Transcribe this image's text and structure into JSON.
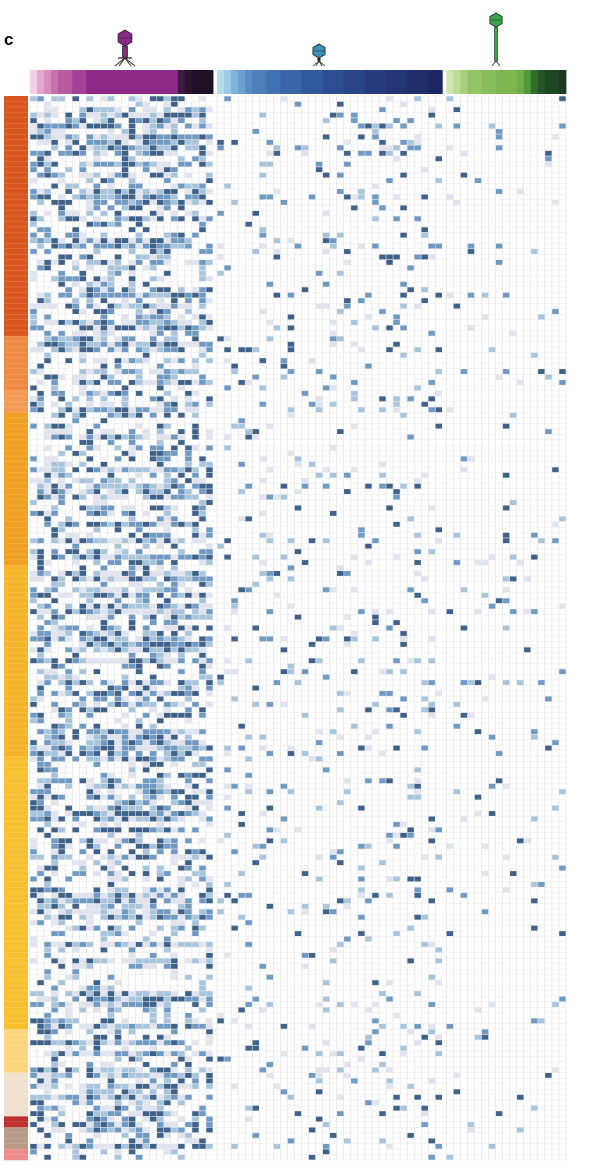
{
  "panel_label": "c",
  "chart_data": {
    "type": "heatmap",
    "title": "",
    "xlabel": "",
    "ylabel": "",
    "grid": true,
    "legend": "none",
    "column_groups": [
      {
        "phage_icon": "myovirus-phage-icon",
        "icon_color": "#8b2a85",
        "column_colors": [
          "#f2d0e4",
          "#e3a9cc",
          "#d98dbe",
          "#c672ad",
          "#b85aa0",
          "#b85aa0",
          "#a44095",
          "#a44095",
          "#8e2a88",
          "#8e2a88",
          "#8e2a88",
          "#8e2a88",
          "#8e2a88",
          "#8e2a88",
          "#8e2a88",
          "#8e2a88",
          "#8e2a88",
          "#8e2a88",
          "#8e2a88",
          "#8e2a88",
          "#8e2a88",
          "#3e1a3c",
          "#2a1430",
          "#1f1028",
          "#1f1028",
          "#1f1028"
        ]
      },
      {
        "phage_icon": "podovirus-phage-icon",
        "icon_color": "#3f8fb8",
        "column_colors": [
          "#b9dcea",
          "#9ccbe2",
          "#7bb4d8",
          "#6aa2cf",
          "#5b8dc4",
          "#4e7fbb",
          "#4e7fbb",
          "#4272b2",
          "#4272b2",
          "#3a66a8",
          "#3a66a8",
          "#3a66a8",
          "#33599d",
          "#33599d",
          "#33599d",
          "#2e4e92",
          "#2e4e92",
          "#2e4e92",
          "#2a4488",
          "#2a4488",
          "#2a4488",
          "#263c7d",
          "#263c7d",
          "#263c7d",
          "#233574",
          "#233574",
          "#233574",
          "#202e6b",
          "#202e6b",
          "#202e6b",
          "#1d2862",
          "#1d2862"
        ]
      },
      {
        "phage_icon": "siphovirus-phage-icon",
        "icon_color": "#3aa64a",
        "column_colors": [
          "#cfe6ae",
          "#bddb93",
          "#a8d07a",
          "#93c468",
          "#93c468",
          "#87bd5c",
          "#87bd5c",
          "#7eb752",
          "#7eb752",
          "#7eb752",
          "#72ad48",
          "#4f9a3b",
          "#2f6f2a",
          "#24552a",
          "#1e4524",
          "#1e4524",
          "#1a3a20"
        ]
      }
    ],
    "row_groups": [
      {
        "color": "#d9561f",
        "rows": 44
      },
      {
        "color": "#ef8a43",
        "rows": 10
      },
      {
        "color": "#f39a55",
        "rows": 4
      },
      {
        "color": "#f0a022",
        "rows": 28
      },
      {
        "color": "#f6b42a",
        "rows": 35
      },
      {
        "color": "#f8c030",
        "rows": 50
      },
      {
        "color": "#fcd67e",
        "rows": 8
      },
      {
        "color": "#f0e0cf",
        "rows": 8
      },
      {
        "color": "#c0302c",
        "rows": 2
      },
      {
        "color": "#b89a86",
        "rows": 4
      },
      {
        "color": "#f08c8c",
        "rows": 2
      }
    ],
    "value_scale": {
      "levels": [
        0,
        1,
        2,
        3,
        4
      ],
      "colors": [
        "#ffffff",
        "#e1e4ef",
        "#a8c5de",
        "#6e9ac4",
        "#3f628b"
      ]
    },
    "values": []
  }
}
